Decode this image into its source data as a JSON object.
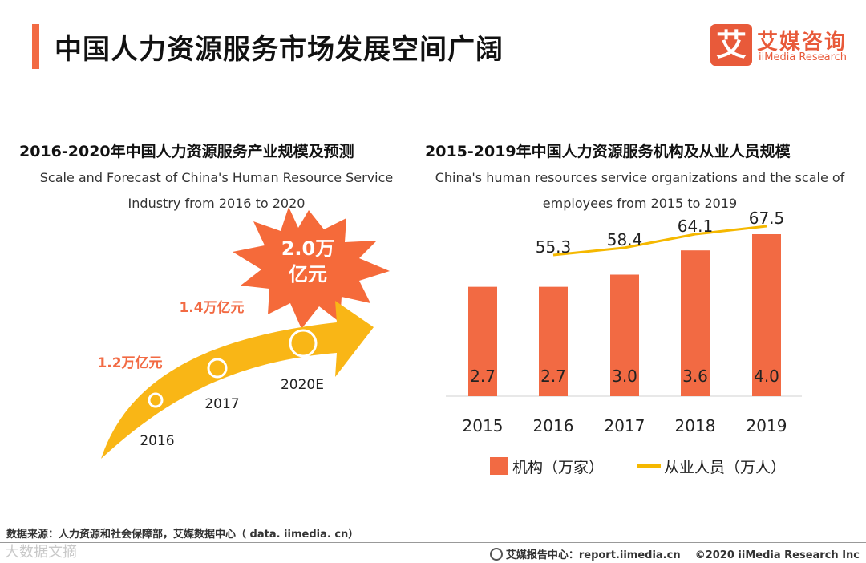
{
  "header": {
    "title": "中国人力资源服务市场发展空间广阔",
    "logo_cn": "艾媒咨询",
    "logo_en": "iiMedia Research",
    "logo_mark": "艾"
  },
  "colors": {
    "accent": "#f26a43",
    "bar": "#f26a43",
    "line": "#f5b800",
    "arrow": "#f9b616",
    "burst": "#f56a3a"
  },
  "chart_data": [
    {
      "type": "infographic-arrow",
      "title_cn": "2016-2020年中国人力资源服务产业规模及预测",
      "title_en": "Scale and Forecast of China's Human Resource Service Industry from 2016 to 2020",
      "categories": [
        "2016",
        "2017",
        "2020E"
      ],
      "values": [
        1.2,
        1.4,
        2.0
      ],
      "unit": "万亿元",
      "value_labels": [
        "1.2万亿元",
        "1.4万亿元",
        "2.0万亿元"
      ],
      "burst_label_line1": "2.0万",
      "burst_label_line2": "亿元"
    },
    {
      "type": "bar+line",
      "title_cn": "2015-2019年中国人力资源服务机构及从业人员规模",
      "title_en": "China's human resources service organizations and the scale of employees from 2015 to 2019",
      "categories": [
        "2015",
        "2016",
        "2017",
        "2018",
        "2019"
      ],
      "series": [
        {
          "name": "机构（万家）",
          "type": "bar",
          "values": [
            2.7,
            2.7,
            3.0,
            3.6,
            4.0
          ]
        },
        {
          "name": "从业人员（万人）",
          "type": "line",
          "values": [
            null,
            55.3,
            58.4,
            64.1,
            67.5
          ]
        }
      ],
      "bar_labels": [
        "2.7",
        "2.7",
        "3.0",
        "3.6",
        "4.0"
      ],
      "line_labels": [
        "",
        "55.3",
        "58.4",
        "64.1",
        "67.5"
      ]
    }
  ],
  "footer": {
    "source": "数据来源：人力资源和社会保障部，艾媒数据中心（ data. iimedia. cn）",
    "center": "艾媒报告中心：report.iimedia.cn",
    "copyright": "©2020  iiMedia Research  Inc",
    "watermark": "大数据文摘"
  }
}
